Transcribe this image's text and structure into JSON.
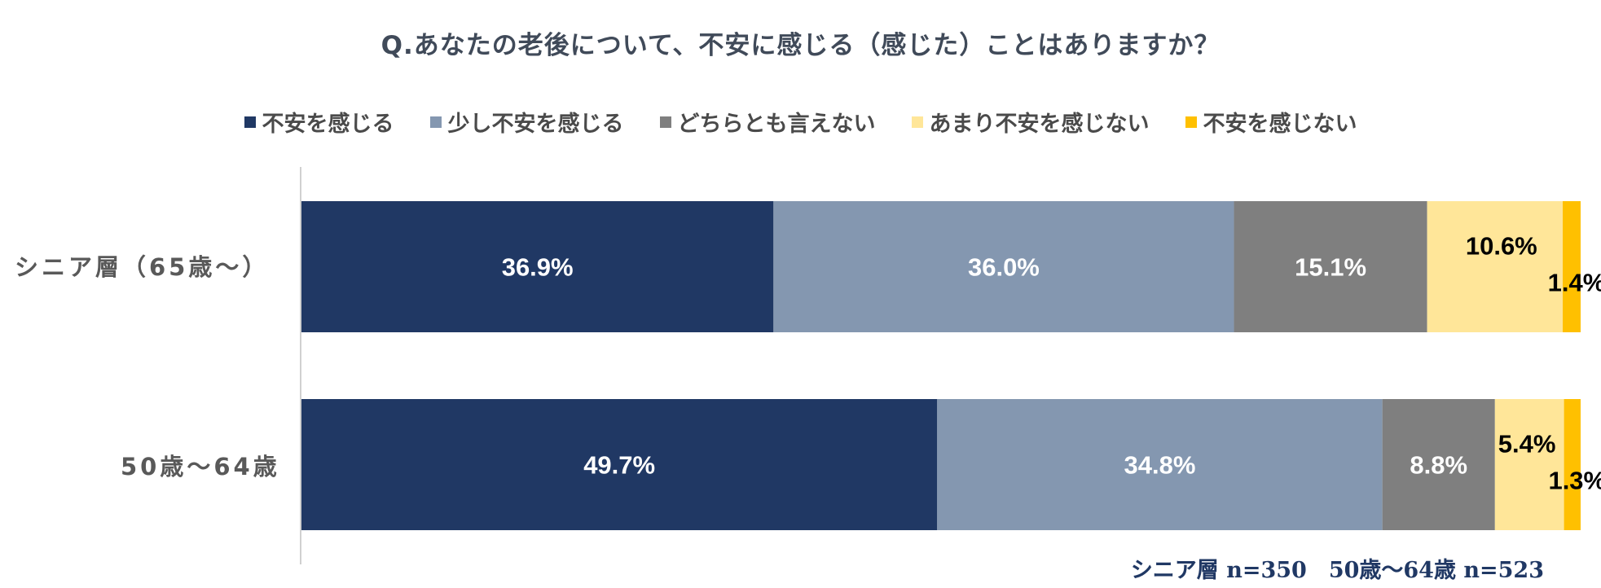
{
  "chart_data": {
    "type": "bar",
    "orientation": "horizontal",
    "stacked": true,
    "title": "Q.あなたの老後について、不安に感じる（感じた）ことはありますか？",
    "categories": [
      "シニア層（65歳～）",
      "50歳～64歳"
    ],
    "series": [
      {
        "name": "不安を感じる",
        "color": "#203864",
        "values": [
          36.9,
          49.7
        ],
        "labels": [
          "36.9%",
          "49.7%"
        ]
      },
      {
        "name": "少し不安を感じる",
        "color": "#8497b0",
        "values": [
          36.0,
          34.8
        ],
        "labels": [
          "36.0%",
          "34.8%"
        ]
      },
      {
        "name": "どちらとも言えない",
        "color": "#7f7f7f",
        "values": [
          15.1,
          8.8
        ],
        "labels": [
          "15.1%",
          "8.8%"
        ]
      },
      {
        "name": "あまり不安を感じない",
        "color": "#ffe699",
        "values": [
          10.6,
          5.4
        ],
        "labels": [
          "10.6%",
          "5.4%"
        ]
      },
      {
        "name": "不安を感じない",
        "color": "#ffc000",
        "values": [
          1.4,
          1.3
        ],
        "labels": [
          "1.4%",
          "1.3%"
        ]
      }
    ],
    "xlim": [
      0,
      100
    ],
    "legend_position": "top"
  },
  "footnote": "シニア層 n=350　50歳～64歳 n=523"
}
